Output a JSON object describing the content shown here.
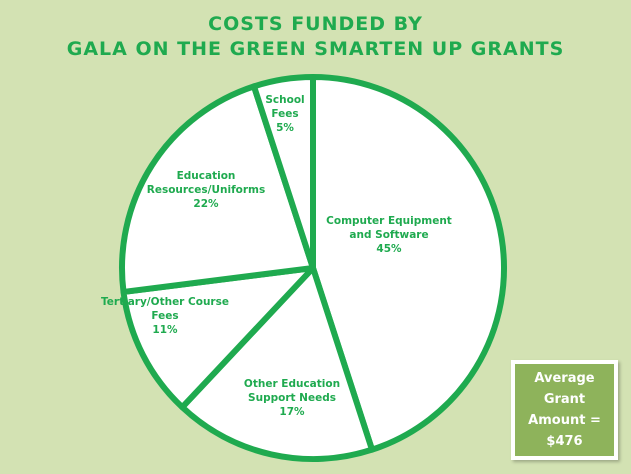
{
  "chart_data": {
    "type": "pie",
    "title_lines": [
      "COSTS FUNDED BY",
      "GALA ON THE GREEN SMARTEN UP GRANTS"
    ],
    "slices": [
      {
        "label_lines": [
          "Computer Equipment",
          "and Software"
        ],
        "pct_label": "45%",
        "value": 45
      },
      {
        "label_lines": [
          "Other Education",
          "Support Needs"
        ],
        "pct_label": "17%",
        "value": 17
      },
      {
        "label_lines": [
          "Tertiary/Other Course",
          "Fees"
        ],
        "pct_label": "11%",
        "value": 11
      },
      {
        "label_lines": [
          "Education",
          "Resources/Uniforms"
        ],
        "pct_label": "22%",
        "value": 22
      },
      {
        "label_lines": [
          "School",
          "Fees"
        ],
        "pct_label": "5%",
        "value": 5
      }
    ],
    "start_angle_deg": 0,
    "direction": "clockwise",
    "colors": {
      "slice_fill": "#ffffff",
      "slice_stroke": "#1faa4f",
      "label_text": "#1faa4f",
      "background": "#d3e2b3"
    }
  },
  "summary_box": {
    "lines": [
      "Average",
      "Grant",
      "Amount =",
      "$476"
    ],
    "colors": {
      "fill": "#8eb35b",
      "border": "#ffffff",
      "text": "#ffffff"
    }
  }
}
